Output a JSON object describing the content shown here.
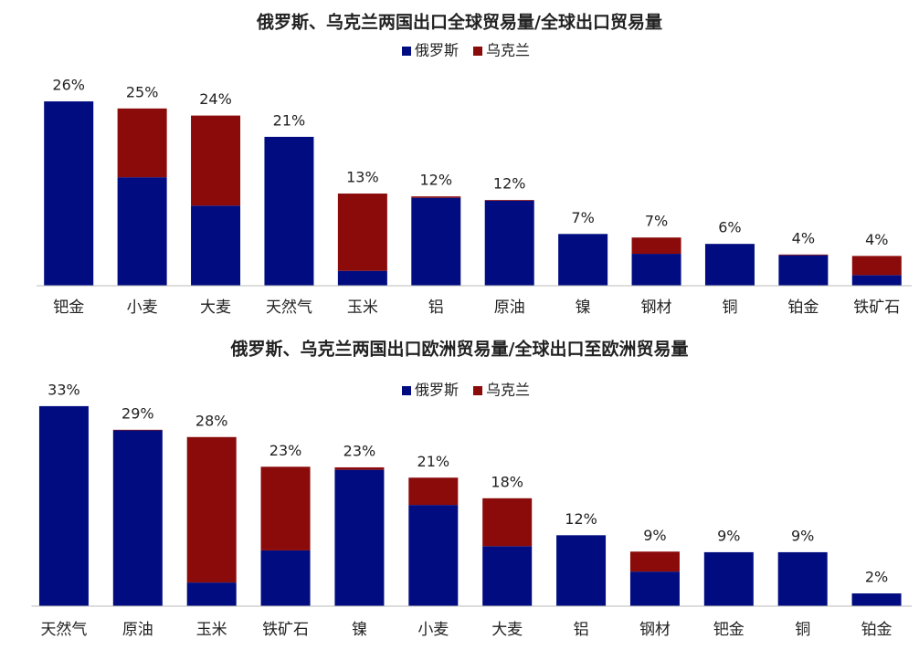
{
  "chart_data": [
    {
      "type": "stacked_bar",
      "title": "俄罗斯、乌克兰两国出口全球贸易量/全球出口贸易量",
      "categories": [
        "钯金",
        "小麦",
        "大麦",
        "天然气",
        "玉米",
        "铝",
        "原油",
        "镍",
        "钢材",
        "铜",
        "铂金",
        "铁矿石"
      ],
      "series": [
        {
          "name": "俄罗斯",
          "color": "#000c80",
          "values": [
            26,
            15.3,
            11.3,
            21,
            2.1,
            12.4,
            12,
            7.3,
            4.5,
            5.9,
            4.3,
            1.5
          ]
        },
        {
          "name": "乌克兰",
          "color": "#8b0a0a",
          "values": [
            0,
            9.7,
            12.7,
            0,
            10.9,
            0.2,
            0.1,
            0,
            2.3,
            0,
            0.1,
            2.7
          ]
        }
      ],
      "total_labels": [
        "26%",
        "25%",
        "24%",
        "21%",
        "13%",
        "12%",
        "12%",
        "7%",
        "7%",
        "6%",
        "4%",
        "4%"
      ],
      "ylim": [
        0,
        30
      ],
      "legend": "top"
    },
    {
      "type": "stacked_bar",
      "title": "俄罗斯、乌克兰两国出口欧洲贸易量/全球出口至欧洲贸易量",
      "categories": [
        "天然气",
        "原油",
        "玉米",
        "铁矿石",
        "镍",
        "小麦",
        "大麦",
        "铝",
        "钢材",
        "钯金",
        "铜",
        "铂金"
      ],
      "series": [
        {
          "name": "俄罗斯",
          "color": "#000c80",
          "values": [
            33,
            29,
            3.9,
            9.2,
            22.5,
            16.7,
            9.9,
            11.7,
            5.7,
            8.9,
            8.9,
            2.1
          ]
        },
        {
          "name": "乌克兰",
          "color": "#8b0a0a",
          "values": [
            0,
            0.1,
            24,
            13.8,
            0.4,
            4.5,
            7.9,
            0,
            3.3,
            0,
            0,
            0
          ]
        }
      ],
      "total_labels": [
        "33%",
        "29%",
        "28%",
        "23%",
        "23%",
        "21%",
        "18%",
        "12%",
        "9%",
        "9%",
        "9%",
        "2%"
      ],
      "ylim": [
        0,
        36
      ],
      "legend": "top"
    }
  ]
}
